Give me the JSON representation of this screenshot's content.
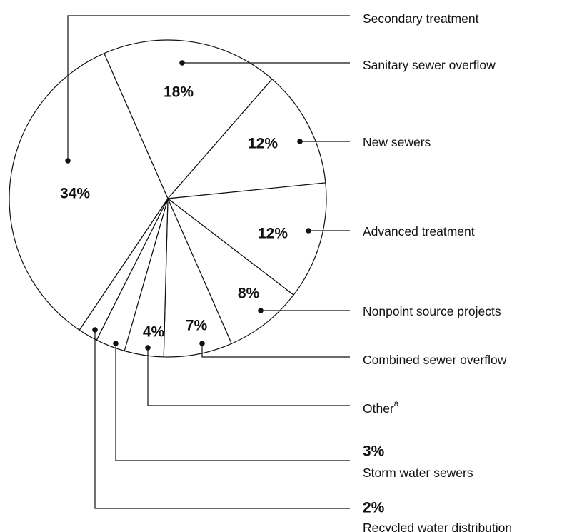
{
  "chart_data": {
    "type": "pie",
    "categories": [
      "Sanitary sewer overflow",
      "New sewers",
      "Advanced treatment",
      "Nonpoint source projects",
      "Combined sewer overflow",
      "Other",
      "Storm water sewers",
      "Recycled water distribution",
      "Secondary treatment"
    ],
    "label_superscripts": [
      null,
      null,
      null,
      null,
      null,
      "a",
      null,
      null,
      null
    ],
    "values": [
      18,
      12,
      12,
      8,
      7,
      4,
      3,
      2,
      34
    ],
    "value_labels": [
      "18%",
      "12%",
      "12%",
      "8%",
      "7%",
      "4%",
      "3%",
      "2%",
      "34%"
    ],
    "color": "#ffffff"
  }
}
